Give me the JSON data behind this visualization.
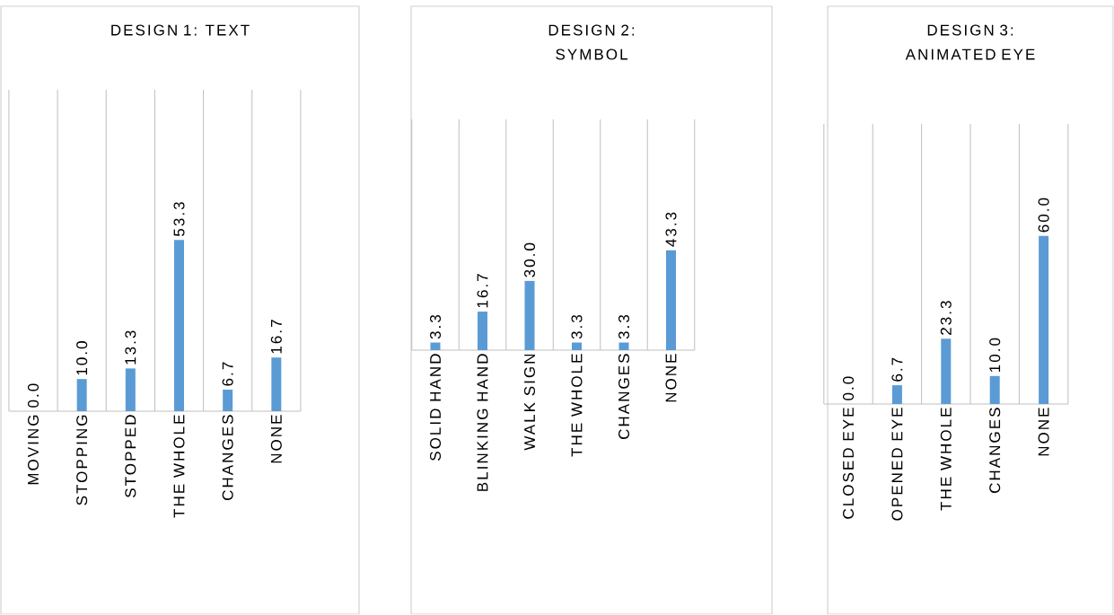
{
  "chart_data": [
    {
      "type": "bar",
      "title": "DESIGN 1: TEXT",
      "categories": [
        "MOVING",
        "STOPPING",
        "STOPPED",
        "THE WHOLE",
        "CHANGES",
        "NONE"
      ],
      "values": [
        0,
        10,
        13.3,
        53.3,
        6.7,
        16.7
      ],
      "value_labels": [
        "0.0",
        "10.0",
        "13.3",
        "53.3",
        "6.7",
        "16.7"
      ],
      "color": "#5b9bd5",
      "ylim": [
        0,
        100
      ],
      "tick_labels": "x",
      "grid": "x"
    },
    {
      "type": "bar",
      "title": "DESIGN 2: SYMBOL",
      "categories": [
        "SOLID HAND",
        "BLINKING HAND",
        "WALK SIGN",
        "THE WHOLE",
        "CHANGES",
        "NONE"
      ],
      "values": [
        3.3,
        16.7,
        30,
        3.3,
        3.3,
        43.3
      ],
      "value_labels": [
        "3.3",
        "16.7",
        "30.0",
        "3.3",
        "3.3",
        "43.3"
      ],
      "color": "#5b9bd5",
      "ylim": [
        0,
        100
      ],
      "tick_labels": "x",
      "grid": "x"
    },
    {
      "type": "bar",
      "title": "DESIGN 3: ANIMATED EYE",
      "categories": [
        "CLOSED EYE",
        "OPENED EYE",
        "THE WHOLE",
        "CHANGES",
        "NONE"
      ],
      "values": [
        0,
        6.7,
        23.3,
        10,
        60
      ],
      "value_labels": [
        "0.0",
        "6.7",
        "23.3",
        "10.0",
        "60.0"
      ],
      "color": "#5b9bd5",
      "ylim": [
        0,
        100
      ],
      "tick_labels": "x",
      "grid": "x"
    }
  ]
}
